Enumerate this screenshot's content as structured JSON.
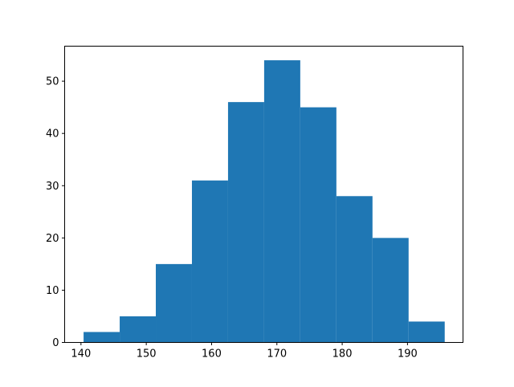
{
  "chart_data": {
    "type": "bar",
    "subtype": "histogram",
    "title": "",
    "xlabel": "",
    "ylabel": "",
    "bin_edges": [
      140.4,
      145.93,
      151.46,
      156.99,
      162.52,
      168.05,
      173.58,
      179.11,
      184.64,
      190.17,
      195.7
    ],
    "values": [
      2,
      5,
      15,
      31,
      46,
      54,
      45,
      28,
      20,
      4
    ],
    "xlim": [
      137.5,
      198.5
    ],
    "ylim": [
      0,
      56.7
    ],
    "xticks": [
      140,
      150,
      160,
      170,
      180,
      190
    ],
    "yticks": [
      0,
      10,
      20,
      30,
      40,
      50
    ],
    "grid": false,
    "color": "#1f77b4"
  }
}
